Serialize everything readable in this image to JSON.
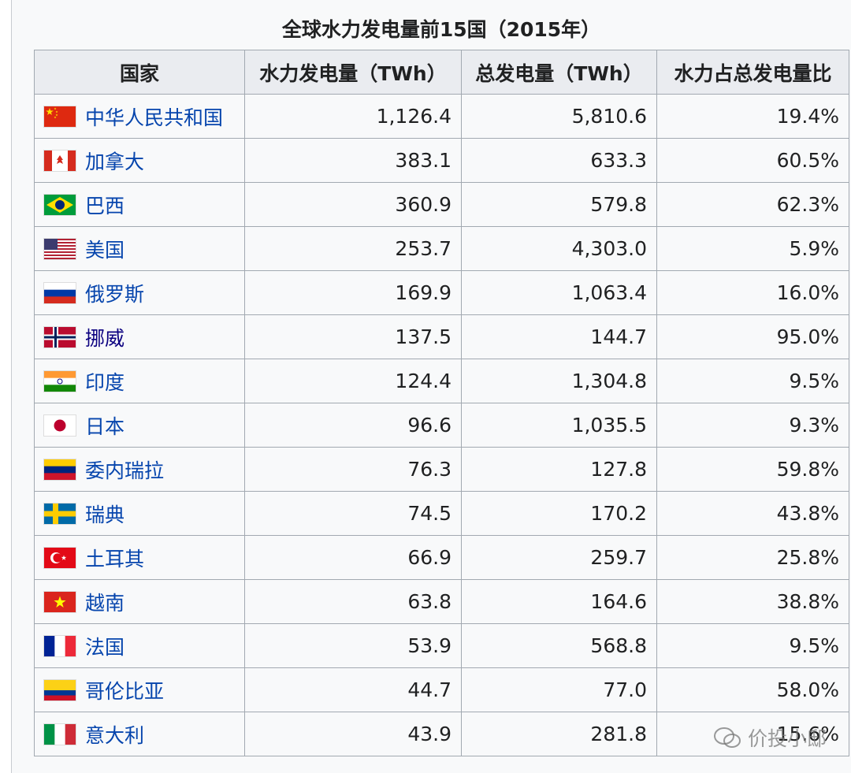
{
  "title": "全球水力发电量前15国（2015年）",
  "table": {
    "header": [
      "国家",
      "水力发电量（TWh）",
      "总发电量（TWh）",
      "水力占总发电量比"
    ],
    "rows": [
      [
        "中华人民共和国",
        "1,126.4",
        "5,810.6",
        "19.4%"
      ],
      [
        "加拿大",
        "383.1",
        "633.3",
        "60.5%"
      ],
      [
        "巴西",
        "360.9",
        "579.8",
        "62.3%"
      ],
      [
        "美国",
        "253.7",
        "4,303.0",
        "5.9%"
      ],
      [
        "俄罗斯",
        "169.9",
        "1,063.4",
        "16.0%"
      ],
      [
        "挪威",
        "137.5",
        "144.7",
        "95.0%"
      ],
      [
        "印度",
        "124.4",
        "1,304.8",
        "9.5%"
      ],
      [
        "日本",
        "96.6",
        "1,035.5",
        "9.3%"
      ],
      [
        "委内瑞拉",
        "76.3",
        "127.8",
        "59.8%"
      ],
      [
        "瑞典",
        "74.5",
        "170.2",
        "43.8%"
      ],
      [
        "土耳其",
        "66.9",
        "259.7",
        "25.8%"
      ],
      [
        "越南",
        "63.8",
        "164.6",
        "38.8%"
      ],
      [
        "法国",
        "53.9",
        "568.8",
        "9.5%"
      ],
      [
        "哥伦比亚",
        "44.7",
        "77.0",
        "58.0%"
      ],
      [
        "意大利",
        "43.9",
        "281.8",
        "15.6%"
      ]
    ]
  },
  "watermark": "价投小邸"
}
